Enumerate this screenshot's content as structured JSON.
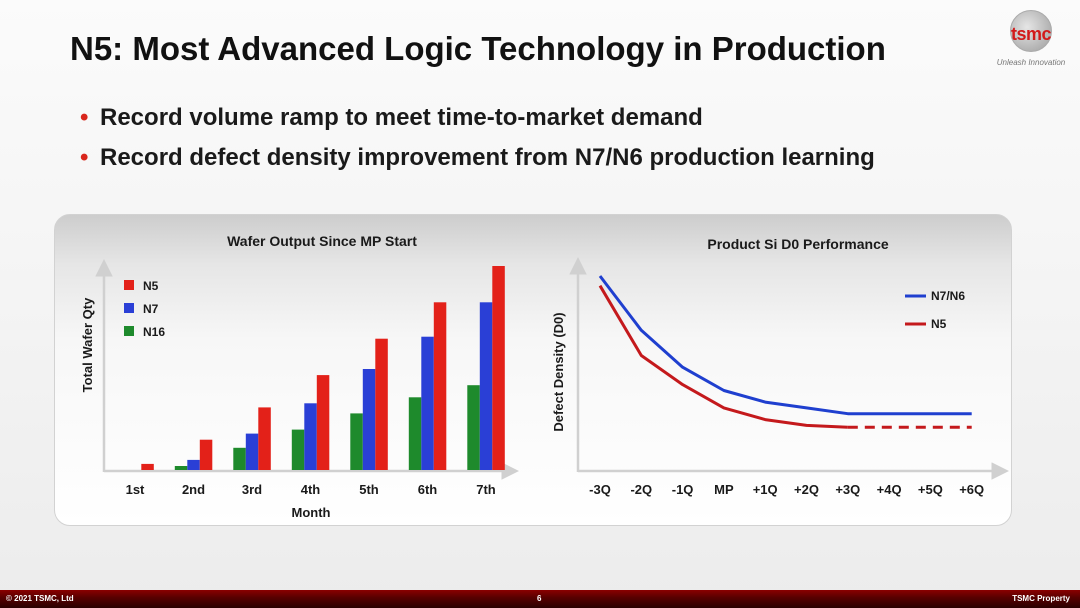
{
  "slide": {
    "title": "N5: Most Advanced Logic Technology in Production",
    "bullets": [
      "Record volume ramp to meet time-to-market demand",
      "Record defect density improvement from N7/N6 production learning"
    ],
    "bullet_color": "#d9261c"
  },
  "logo": {
    "word": "tsmc",
    "tagline": "Unleash Innovation",
    "icon": "globe-icon"
  },
  "footer": {
    "left": "© 2021 TSMC, Ltd",
    "center": "6",
    "right": "TSMC Property"
  },
  "chart_data": [
    {
      "type": "bar",
      "title": "Wafer Output Since MP Start",
      "xlabel": "Month",
      "ylabel": "Total Wafer Qty",
      "categories": [
        "1st",
        "2nd",
        "3rd",
        "4th",
        "5th",
        "6th",
        "7th"
      ],
      "ylim": [
        0,
        100
      ],
      "grid": false,
      "legend_position": "top-left",
      "series": [
        {
          "name": "N16",
          "color": "#1e8a2c",
          "values": [
            0,
            2,
            11,
            20,
            28,
            36,
            42
          ]
        },
        {
          "name": "N7",
          "color": "#2a3fd6",
          "values": [
            0,
            5,
            18,
            33,
            50,
            66,
            83
          ]
        },
        {
          "name": "N5",
          "color": "#e32119",
          "values": [
            3,
            15,
            31,
            47,
            65,
            83,
            101
          ]
        }
      ]
    },
    {
      "type": "line",
      "title": "Product Si D0 Performance",
      "ylabel": "Defect Density (D0)",
      "x": [
        "-3Q",
        "-2Q",
        "-1Q",
        "MP",
        "+1Q",
        "+2Q",
        "+3Q",
        "+4Q",
        "+5Q",
        "+6Q"
      ],
      "ylim": [
        0,
        100
      ],
      "grid": false,
      "legend_position": "top-right",
      "series": [
        {
          "name": "N7/N6",
          "color": "#1f3fcf",
          "style": "solid",
          "values": [
            100,
            72,
            53,
            41,
            35,
            32,
            29,
            29,
            29,
            29
          ]
        },
        {
          "name": "N5",
          "color": "#c4191c",
          "style": "solid-then-dashed",
          "dashed_from": "+3Q",
          "values": [
            95,
            59,
            44,
            32,
            26,
            23,
            22,
            22,
            22,
            22
          ]
        }
      ]
    }
  ]
}
